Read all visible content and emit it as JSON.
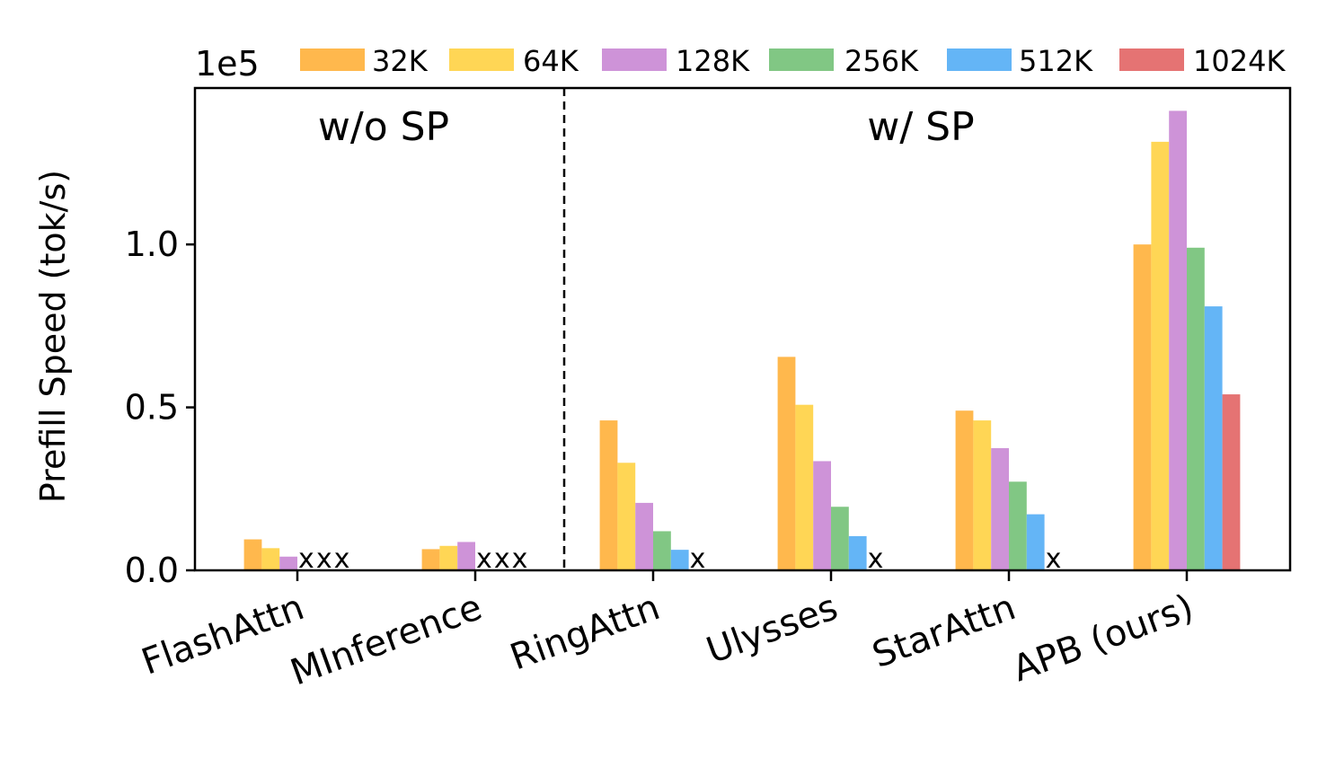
{
  "chart_data": {
    "type": "bar",
    "ylabel": "Prefill Speed (tok/s)",
    "y_multiplier": "1e5",
    "ylim": [
      0,
      1.48
    ],
    "yticks": [
      0.0,
      0.5,
      1.0
    ],
    "ytick_labels": [
      "0.0",
      "0.5",
      "1.0"
    ],
    "categories": [
      "FlashAttn",
      "MInference",
      "RingAttn",
      "Ulysses",
      "StarAttn",
      "APB (ours)"
    ],
    "series": [
      {
        "name": "32K",
        "color": "#FFB84D",
        "values": [
          0.095,
          0.065,
          0.46,
          0.655,
          0.49,
          1.0
        ]
      },
      {
        "name": "64K",
        "color": "#FFD655",
        "values": [
          0.068,
          0.075,
          0.33,
          0.508,
          0.46,
          1.315
        ]
      },
      {
        "name": "128K",
        "color": "#CE93D8",
        "values": [
          0.042,
          0.087,
          0.207,
          0.335,
          0.375,
          1.41
        ]
      },
      {
        "name": "256K",
        "color": "#81C784",
        "values": [
          null,
          null,
          0.12,
          0.195,
          0.272,
          0.99
        ]
      },
      {
        "name": "512K",
        "color": "#64B5F6",
        "values": [
          null,
          null,
          0.063,
          0.105,
          0.172,
          0.81
        ]
      },
      {
        "name": "1024K",
        "color": "#E57373",
        "values": [
          null,
          null,
          null,
          null,
          null,
          0.54
        ]
      }
    ],
    "missing_marker": "x",
    "group_annotations": [
      {
        "text": "w/o SP",
        "span": "FlashAttn-MInference"
      },
      {
        "text": "w/ SP",
        "span": "RingAttn-APB (ours)"
      }
    ],
    "separator": "dashed line between MInference and RingAttn",
    "legend_position": "top, outside"
  }
}
